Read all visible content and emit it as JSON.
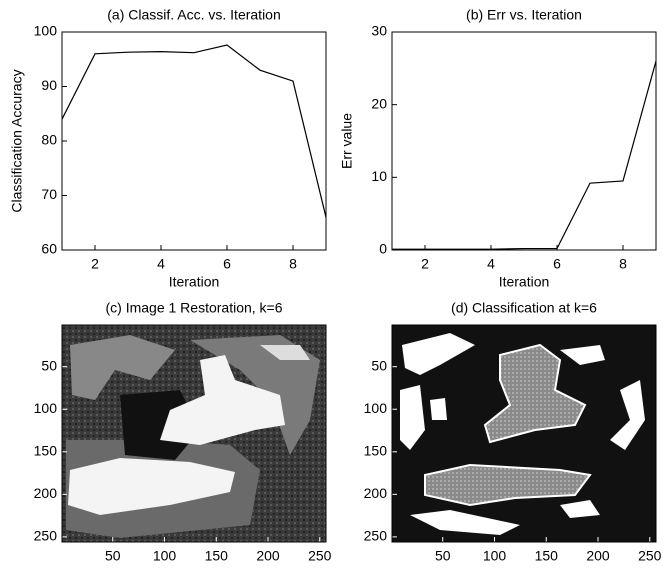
{
  "chart_data": [
    {
      "type": "line",
      "title": "(a) Classif. Acc. vs. Iteration",
      "xlabel": "Iteration",
      "ylabel": "Classification Accuracy",
      "x": [
        1,
        2,
        3,
        4,
        5,
        6,
        7,
        8,
        9
      ],
      "values": [
        84,
        96,
        96.3,
        96.4,
        96.2,
        97.6,
        93,
        91,
        66
      ],
      "color": "#000000",
      "xlim": [
        1,
        9
      ],
      "xticks": [
        2,
        4,
        6,
        8
      ],
      "ylim": [
        60,
        100
      ],
      "yticks": [
        60,
        70,
        80,
        90,
        100
      ]
    },
    {
      "type": "line",
      "title": "(b) Err vs. Iteration",
      "xlabel": "Iteration",
      "ylabel": "Err value",
      "x": [
        1,
        2,
        3,
        4,
        5,
        6,
        7,
        8,
        9
      ],
      "values": [
        0.1,
        0.1,
        0.1,
        0.1,
        0.2,
        0.2,
        9.2,
        9.5,
        26
      ],
      "color": "#000000",
      "xlim": [
        1,
        9
      ],
      "xticks": [
        2,
        4,
        6,
        8
      ],
      "ylim": [
        0,
        30
      ],
      "yticks": [
        0,
        10,
        20,
        30
      ]
    },
    {
      "type": "image",
      "title": "(c) Image 1 Restoration, k=6",
      "xlim": [
        1,
        256
      ],
      "xticks": [
        50,
        100,
        150,
        200,
        250
      ],
      "ylim": [
        256,
        1
      ],
      "yticks": [
        50,
        100,
        150,
        200,
        250
      ]
    },
    {
      "type": "image",
      "title": "(d) Classification at k=6",
      "xlim": [
        1,
        256
      ],
      "xticks": [
        50,
        100,
        150,
        200,
        250
      ],
      "ylim": [
        256,
        1
      ],
      "yticks": [
        50,
        100,
        150,
        200,
        250
      ]
    }
  ]
}
